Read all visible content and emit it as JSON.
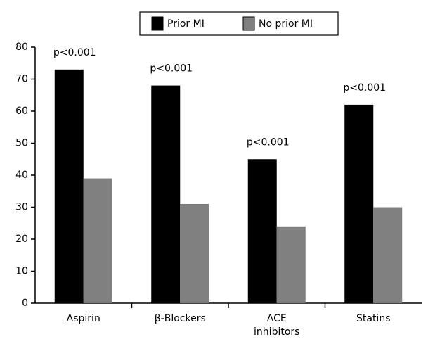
{
  "chart_data": {
    "type": "bar",
    "categories": [
      "Aspirin",
      "β-Blockers",
      "ACE inhibitors",
      "Statins"
    ],
    "series": [
      {
        "name": "Prior MI",
        "color": "#000000",
        "values": [
          73,
          68,
          45,
          62
        ]
      },
      {
        "name": "No prior MI",
        "color": "#808080",
        "values": [
          39,
          31,
          24,
          30
        ]
      }
    ],
    "annotations": [
      "p<0.001",
      "p<0.001",
      "p<0.001",
      "p<0.001"
    ],
    "ylim": [
      0,
      80
    ],
    "yticks": [
      0,
      10,
      20,
      30,
      40,
      50,
      60,
      70,
      80
    ],
    "grid": false,
    "legend": "top"
  }
}
